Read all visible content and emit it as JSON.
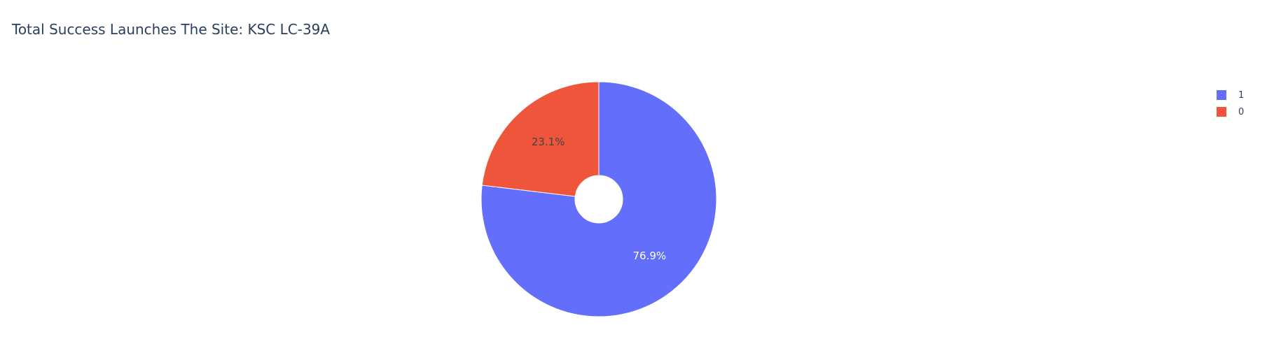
{
  "chart_data": {
    "type": "pie",
    "title": "Total Success Launches The Site: KSC LC-39A",
    "hole": true,
    "categories": [
      "1",
      "0"
    ],
    "values": [
      76.9,
      23.1
    ],
    "labels": [
      "76.9%",
      "23.1%"
    ],
    "colors": [
      "#636efa",
      "#ef553b"
    ],
    "label_colors": [
      "#ffffff",
      "#444444"
    ],
    "legend": {
      "placement": "top-right",
      "entries": [
        "1",
        "0"
      ]
    }
  }
}
